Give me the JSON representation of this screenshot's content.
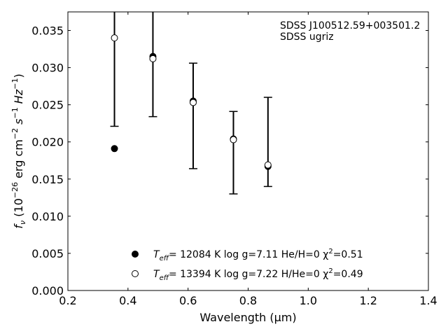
{
  "chart_data": {
    "type": "scatter",
    "xlabel": "Wavelength (μm)",
    "ylabel_parts": [
      "f",
      "ν",
      " (10",
      "−26",
      " erg cm",
      "−2",
      " s",
      "−1",
      " Hz",
      "−1",
      ")"
    ],
    "xlim": [
      0.2,
      1.4
    ],
    "ylim": [
      0.0,
      0.0375
    ],
    "xticks": [
      0.2,
      0.4,
      0.6,
      0.8,
      1.0,
      1.2,
      1.4
    ],
    "yticks": [
      0.0,
      0.005,
      0.01,
      0.015,
      0.02,
      0.025,
      0.03,
      0.035
    ],
    "xtick_labels": [
      "0.2",
      "0.4",
      "0.6",
      "0.8",
      "1.0",
      "1.2",
      "1.4"
    ],
    "ytick_labels": [
      "0.000",
      "0.005",
      "0.010",
      "0.015",
      "0.020",
      "0.025",
      "0.030",
      "0.035"
    ],
    "annotations": [
      "SDSS J100512.59+003501.2",
      "SDSS ugriz"
    ],
    "observed": [
      {
        "x": 0.355,
        "y": 0.034,
        "yerr_low": 0.0221,
        "yerr_high": 0.046
      },
      {
        "x": 0.483,
        "y": 0.0315,
        "yerr_low": 0.0234,
        "yerr_high": 0.04
      },
      {
        "x": 0.617,
        "y": 0.0254,
        "yerr_low": 0.0164,
        "yerr_high": 0.0306
      },
      {
        "x": 0.751,
        "y": 0.0203,
        "yerr_low": 0.013,
        "yerr_high": 0.0241
      },
      {
        "x": 0.866,
        "y": 0.0168,
        "yerr_low": 0.014,
        "yerr_high": 0.026
      }
    ],
    "series": [
      {
        "name_parts": [
          "T",
          "eff",
          "= 12084 K  log g=7.11  He/H=0  χ",
          "2",
          "=0.51"
        ],
        "marker": "filled",
        "x": [
          0.355,
          0.483,
          0.617,
          0.751,
          0.866
        ],
        "y": [
          0.0191,
          0.0315,
          0.0255,
          0.0204,
          0.0167
        ]
      },
      {
        "name_parts": [
          "T",
          "eff",
          "= 13394 K  log g=7.22  H/He=0  χ",
          "2",
          "=0.49"
        ],
        "marker": "open",
        "x": [
          0.355,
          0.483,
          0.617,
          0.751,
          0.866
        ],
        "y": [
          0.034,
          0.0312,
          0.0253,
          0.0203,
          0.0169
        ]
      }
    ]
  }
}
